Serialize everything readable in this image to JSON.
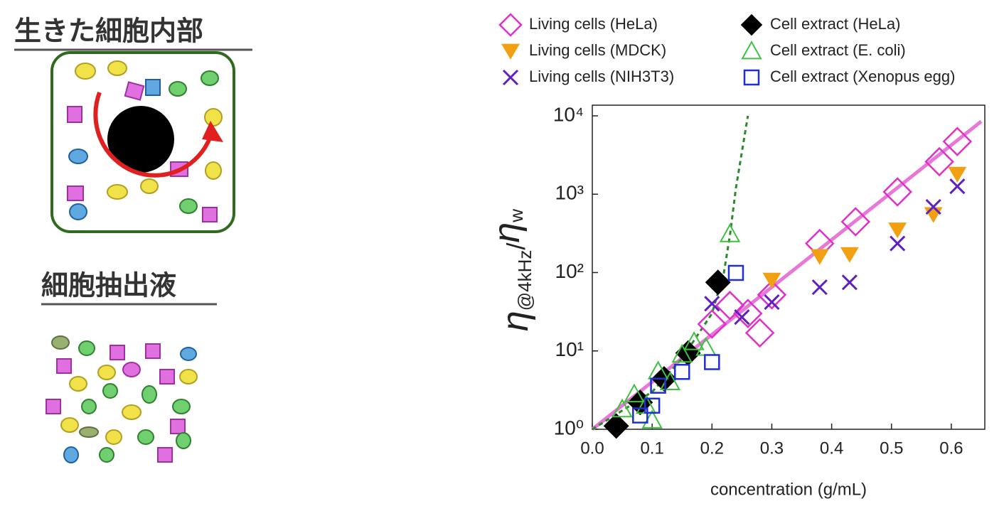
{
  "illustration": {
    "living_title": "生きた細胞内部",
    "extract_title": "細胞抽出液"
  },
  "chart_data": {
    "type": "scatter",
    "xlabel": "concentration (g/mL)",
    "ylabel_parts": [
      "η",
      "@4kHz",
      "/",
      "η",
      "w"
    ],
    "xlim": [
      0,
      0.65
    ],
    "ylim": [
      1,
      10000
    ],
    "ylog": true,
    "grid": false,
    "xticks": [
      {
        "value": 0,
        "label": "0.0"
      },
      0.1,
      0.2,
      0.3,
      0.4,
      0.5,
      0.6
    ],
    "yticks": [
      {
        "value": 1,
        "label": "10⁰"
      },
      {
        "value": 10,
        "label": "10¹"
      },
      {
        "value": 100,
        "label": "10²"
      },
      {
        "value": 1000,
        "label": "10³"
      },
      {
        "value": 10000,
        "label": "10⁴"
      }
    ],
    "legend": "top",
    "lines": [
      {
        "color": "#e878d8",
        "dash": false,
        "x": [
          0,
          0.65
        ],
        "values": [
          1,
          8500
        ]
      },
      {
        "color": "#2a8a2a",
        "dash": true,
        "x": [
          0,
          0.1,
          0.15,
          0.2,
          0.22,
          0.23,
          0.24,
          0.26
        ],
        "values": [
          1,
          3,
          8,
          30,
          100,
          300,
          1200,
          10000
        ]
      }
    ],
    "series": [
      {
        "name": "Living cells (HeLa)",
        "color": "#e030c8",
        "marker": "diamond-open",
        "x": [
          0.2,
          0.23,
          0.26,
          0.28,
          0.3,
          0.38,
          0.44,
          0.51,
          0.58,
          0.61
        ],
        "values": [
          22,
          38,
          30,
          17,
          52,
          235,
          445,
          1070,
          2600,
          4700
        ]
      },
      {
        "name": "Living cells (MDCK)",
        "color": "#f0a010",
        "marker": "triangle-down",
        "x": [
          0.3,
          0.38,
          0.43,
          0.51,
          0.57,
          0.61
        ],
        "values": [
          80,
          160,
          170,
          350,
          550,
          1800
        ]
      },
      {
        "name": "Living cells (NIH3T3)",
        "color": "#6020c0",
        "marker": "x",
        "x": [
          0.2,
          0.25,
          0.3,
          0.38,
          0.43,
          0.51,
          0.57,
          0.61
        ],
        "values": [
          40,
          27,
          42,
          65,
          75,
          235,
          690,
          1260
        ]
      },
      {
        "name": "Cell extract (HeLa)",
        "color": "#000000",
        "marker": "diamond",
        "x": [
          0.04,
          0.08,
          0.12,
          0.16,
          0.21
        ],
        "values": [
          1.1,
          2.2,
          4.4,
          9.4,
          75
        ]
      },
      {
        "name": "Cell extract (E. coli)",
        "color": "#40c040",
        "marker": "triangle-open",
        "x": [
          0.05,
          0.07,
          0.09,
          0.1,
          0.11,
          0.13,
          0.15,
          0.17,
          0.19,
          0.23
        ],
        "values": [
          1.8,
          2.8,
          2,
          1.3,
          5.5,
          4,
          9,
          13,
          11,
          310
        ]
      },
      {
        "name": "Cell extract (Xenopus egg)",
        "color": "#2030d0",
        "marker": "square-open",
        "x": [
          0.08,
          0.1,
          0.11,
          0.15,
          0.2,
          0.24
        ],
        "values": [
          1.5,
          2.0,
          3.6,
          5.4,
          7.2,
          99
        ]
      }
    ]
  }
}
